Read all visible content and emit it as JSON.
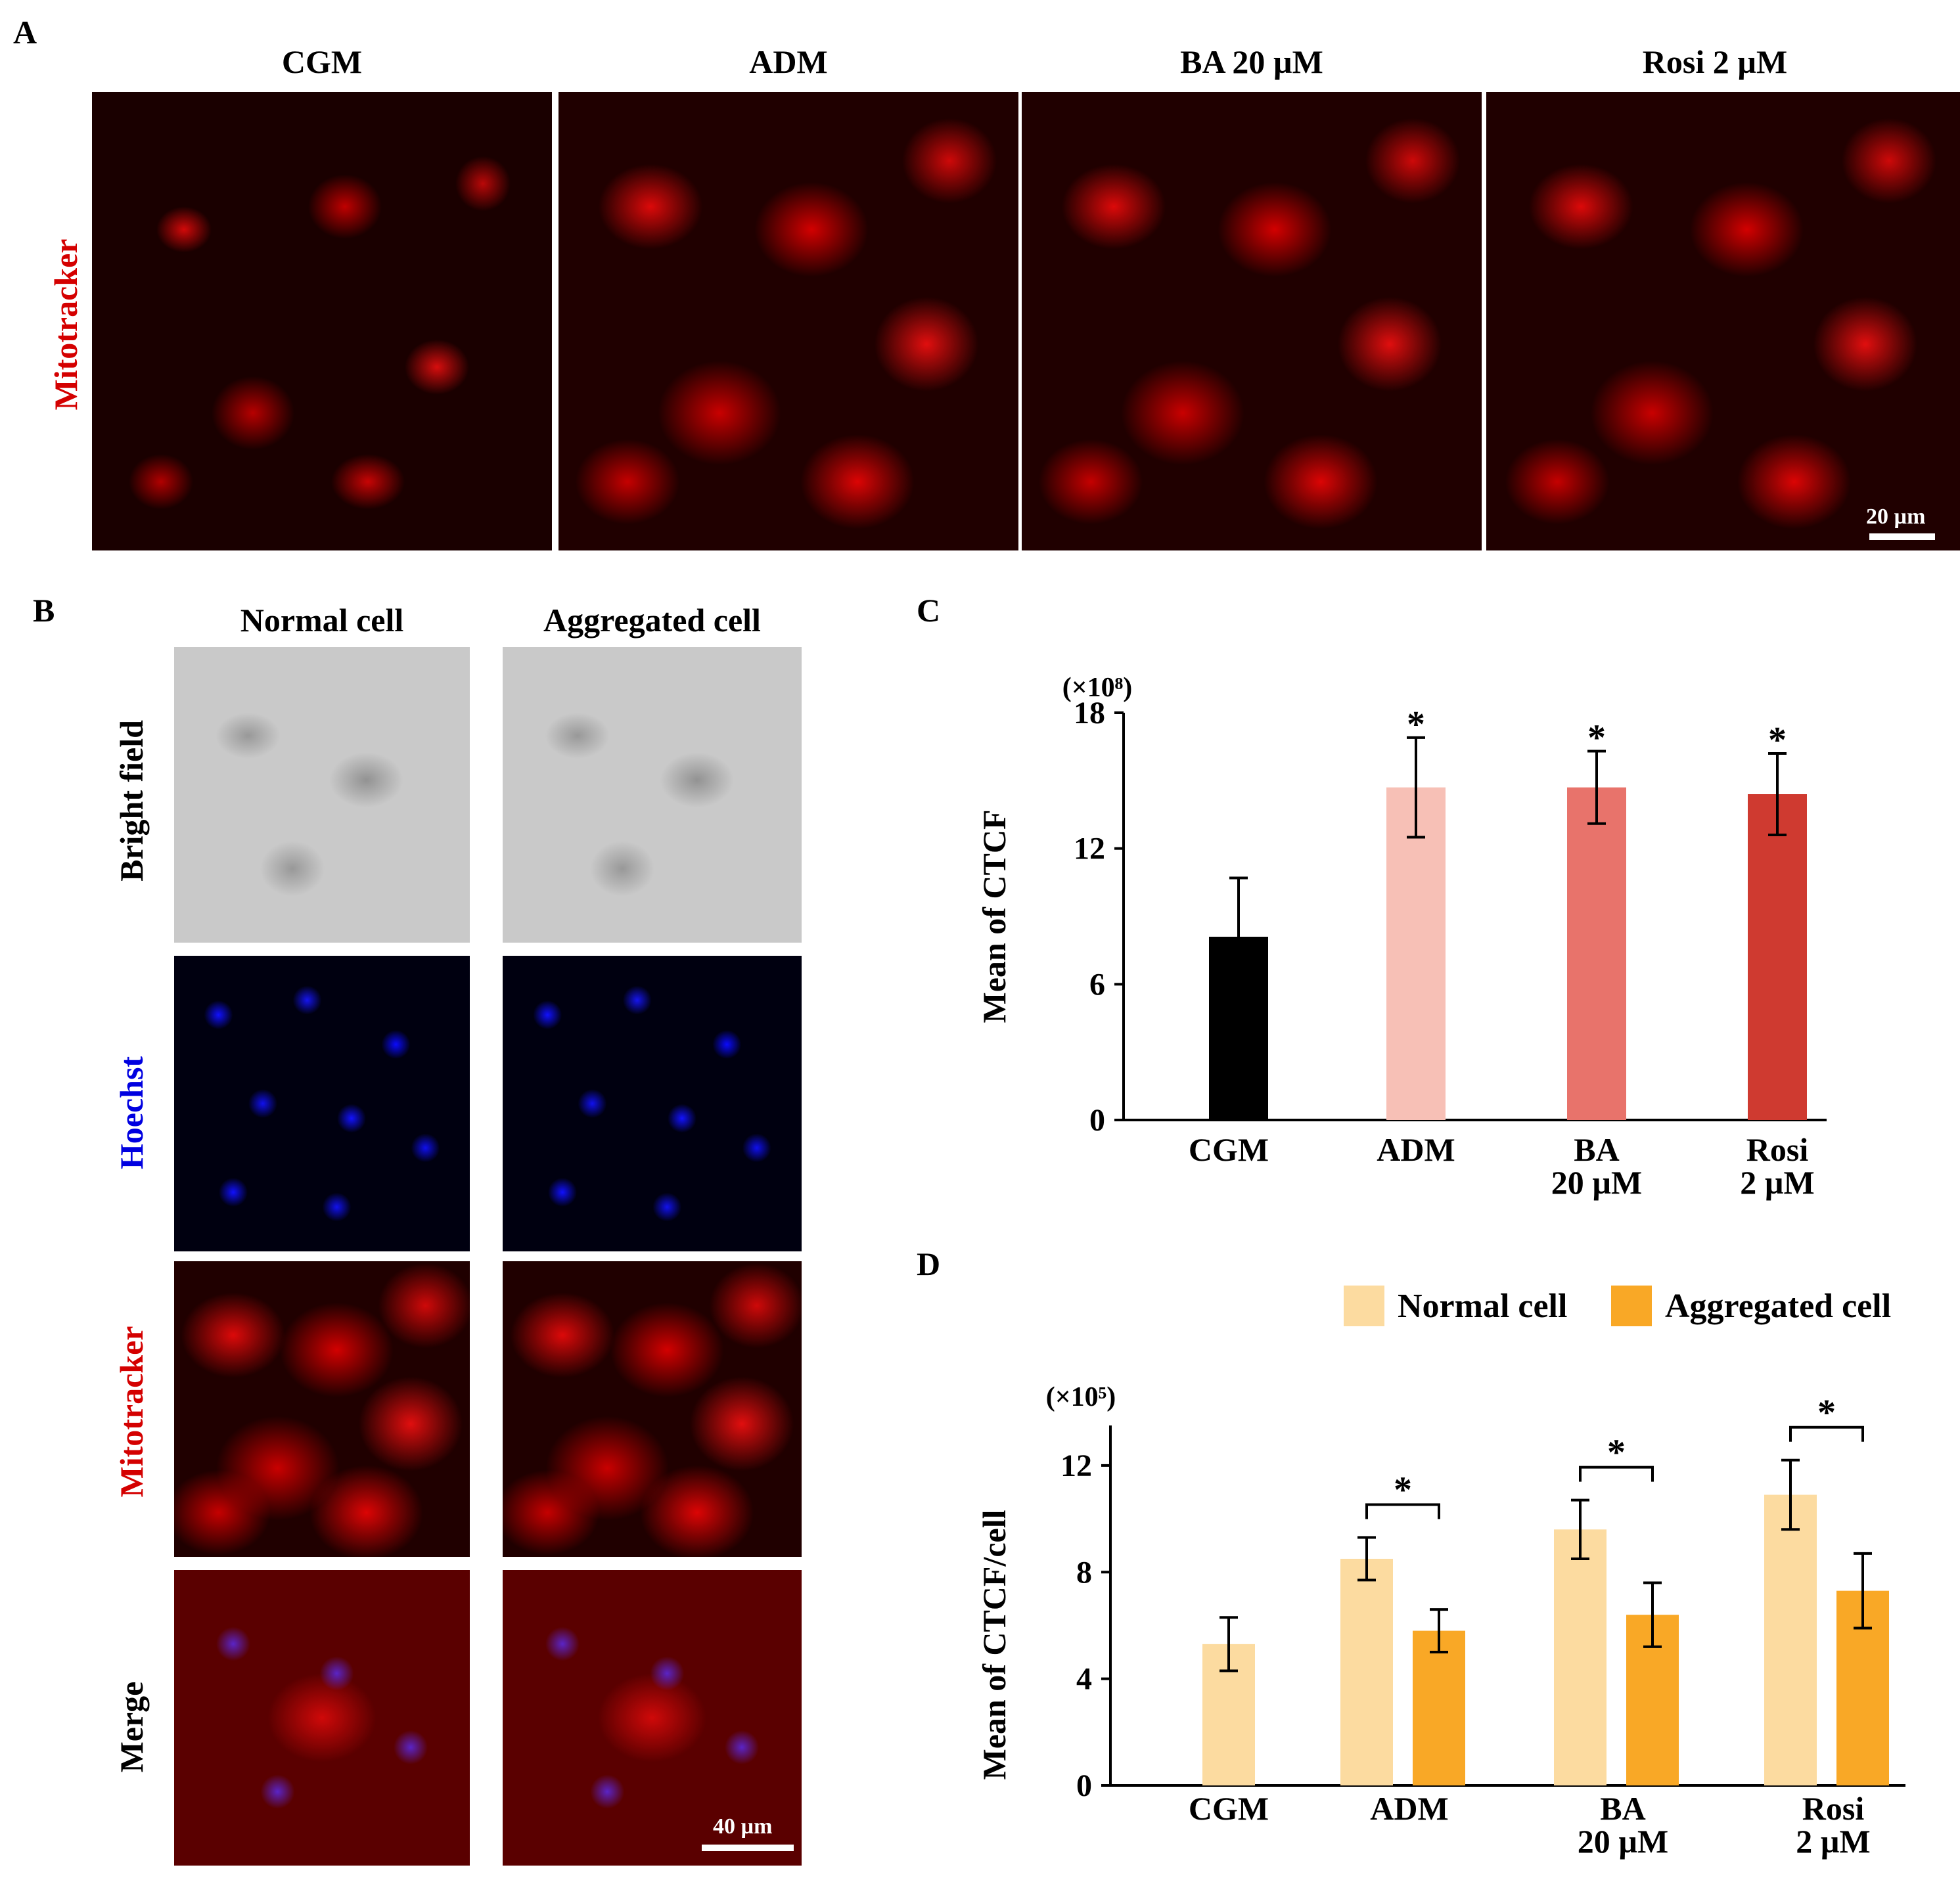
{
  "panels": {
    "a": {
      "letter": "A",
      "columns": [
        "CGM",
        "ADM",
        "BA 20 µM",
        "Rosi 2 µM"
      ],
      "row_label": "Mitotracker",
      "scale_bar": "20 µm"
    },
    "b": {
      "letter": "B",
      "columns": [
        "Normal cell",
        "Aggregated cell"
      ],
      "rows": [
        "Bright field",
        "Hoechst",
        "Mitotracker",
        "Merge"
      ],
      "scale_bar": "40 µm"
    },
    "c": {
      "letter": "C"
    },
    "d": {
      "letter": "D"
    }
  },
  "colors": {
    "mitotracker_label": "#d40000",
    "hoechst_label": "#0000e0",
    "cgm_bar": "#000000",
    "adm_bar": "#f7c0b6",
    "ba_bar": "#e8736b",
    "rosi_bar": "#cf3a30",
    "normal_cell": "#fcdba0",
    "aggregated_cell": "#f9a826"
  },
  "chart_data": [
    {
      "id": "C",
      "type": "bar",
      "multiplier_label": "(×10⁸)",
      "ylabel": "Mean of CTCF",
      "xlabel": "",
      "ylim": [
        0,
        18
      ],
      "yticks": [
        "0",
        "6",
        "12",
        "18"
      ],
      "categories": [
        [
          "CGM"
        ],
        [
          "ADM"
        ],
        [
          "BA",
          "20 µM"
        ],
        [
          "Rosi",
          "2 µM"
        ]
      ],
      "values": [
        8.1,
        14.7,
        14.7,
        14.4
      ],
      "errors": [
        2.6,
        2.2,
        1.6,
        1.8
      ],
      "significance": [
        "",
        "*",
        "*",
        "*"
      ]
    },
    {
      "id": "D",
      "type": "bar",
      "multiplier_label": "(×10⁵)",
      "ylabel": "Mean of CTCF/cell",
      "xlabel": "",
      "ylim": [
        0,
        13.5
      ],
      "yticks": [
        "0",
        "4",
        "8",
        "12"
      ],
      "categories": [
        [
          "CGM"
        ],
        [
          "ADM"
        ],
        [
          "BA",
          "20 µM"
        ],
        [
          "Rosi",
          "2 µM"
        ]
      ],
      "series": [
        {
          "name": "Normal cell",
          "values": [
            5.3,
            8.5,
            9.6,
            10.9
          ],
          "errors": [
            1.0,
            0.8,
            1.1,
            1.3
          ]
        },
        {
          "name": "Aggregated cell",
          "values": [
            null,
            5.8,
            6.4,
            7.3
          ],
          "errors": [
            null,
            0.8,
            1.2,
            1.4
          ]
        }
      ],
      "significance": [
        "",
        "*",
        "*",
        "*"
      ]
    }
  ]
}
